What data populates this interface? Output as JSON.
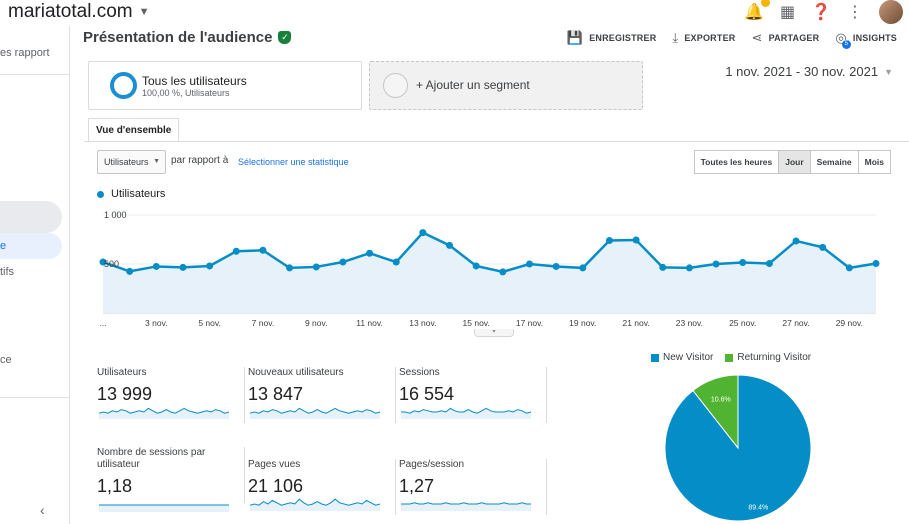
{
  "topbar": {
    "site": "mariatotal.com"
  },
  "sidebar": {
    "items": [
      "es rapport",
      "e",
      "tifs",
      "ce"
    ]
  },
  "header": {
    "title": "Présentation de l'audience",
    "actions": [
      "ENREGISTRER",
      "EXPORTER",
      "PARTAGER",
      "INSIGHTS"
    ],
    "insights_badge": "5"
  },
  "segments": {
    "primary": {
      "name": "Tous les utilisateurs",
      "detail": "100,00 %, Utilisateurs"
    },
    "add": "+ Ajouter un segment"
  },
  "date_range": "1 nov. 2021 - 30 nov. 2021",
  "tabs": [
    "Vue d'ensemble"
  ],
  "controls": {
    "metric": "Utilisateurs",
    "compare_label": "par rapport à",
    "select_stat": "Sélectionner une statistique",
    "granularity": [
      "Toutes les heures",
      "Jour",
      "Semaine",
      "Mois"
    ],
    "active_granularity": "Jour"
  },
  "chart_data": [
    {
      "type": "area",
      "series": [
        {
          "name": "Utilisateurs",
          "values": [
            520,
            425,
            475,
            465,
            480,
            630,
            640,
            460,
            470,
            520,
            610,
            520,
            820,
            690,
            480,
            420,
            500,
            475,
            460,
            740,
            745,
            465,
            460,
            500,
            515,
            505,
            735,
            670,
            460,
            505
          ]
        }
      ],
      "x": [
        "1 nov.",
        "2 nov.",
        "3 nov.",
        "4 nov.",
        "5 nov.",
        "6 nov.",
        "7 nov.",
        "8 nov.",
        "9 nov.",
        "10 nov.",
        "11 nov.",
        "12 nov.",
        "13 nov.",
        "14 nov.",
        "15 nov.",
        "16 nov.",
        "17 nov.",
        "18 nov.",
        "19 nov.",
        "20 nov.",
        "21 nov.",
        "22 nov.",
        "23 nov.",
        "24 nov.",
        "25 nov.",
        "26 nov.",
        "27 nov.",
        "28 nov.",
        "29 nov.",
        "30 nov."
      ],
      "x_tick_labels": [
        "...",
        "3 nov.",
        "5 nov.",
        "7 nov.",
        "9 nov.",
        "11 nov.",
        "13 nov.",
        "15 nov.",
        "17 nov.",
        "19 nov.",
        "21 nov.",
        "23 nov.",
        "25 nov.",
        "27 nov.",
        "29 nov."
      ],
      "y_tick_labels": [
        "1 000",
        "500"
      ],
      "ylim": [
        0,
        1000
      ],
      "legend": "top-left",
      "color": "#058dc7"
    },
    {
      "type": "pie",
      "categories": [
        "New Visitor",
        "Returning Visitor"
      ],
      "values": [
        89.4,
        10.6
      ],
      "labels": [
        "89.4%",
        "10.6%"
      ],
      "colors": [
        "#058dc7",
        "#50b432"
      ],
      "legend": "top"
    }
  ],
  "metrics": [
    {
      "name": "Utilisateurs",
      "value": "13 999",
      "spark": [
        4,
        5,
        4,
        6,
        5,
        7,
        6,
        4,
        5,
        6,
        5,
        8,
        6,
        4,
        5,
        7,
        5,
        4,
        6,
        8,
        6,
        5,
        4,
        5,
        6,
        5,
        7,
        6,
        4,
        5
      ]
    },
    {
      "name": "Nouveaux utilisateurs",
      "value": "13 847",
      "spark": [
        4,
        5,
        4,
        6,
        5,
        7,
        6,
        4,
        5,
        6,
        5,
        8,
        6,
        4,
        5,
        7,
        5,
        4,
        6,
        8,
        6,
        5,
        4,
        5,
        6,
        5,
        7,
        6,
        4,
        5
      ]
    },
    {
      "name": "Sessions",
      "value": "16 554",
      "spark": [
        5,
        5,
        4,
        6,
        5,
        7,
        6,
        5,
        5,
        6,
        5,
        8,
        6,
        5,
        5,
        7,
        5,
        4,
        6,
        8,
        6,
        5,
        5,
        5,
        6,
        5,
        7,
        6,
        4,
        5
      ]
    },
    {
      "name": "Nombre de sessions par utilisateur",
      "value": "1,18",
      "spark": [
        5,
        5,
        5,
        5,
        5,
        5,
        5,
        5,
        5,
        5,
        5,
        5,
        5,
        5,
        5,
        5,
        5,
        5,
        5,
        5,
        5,
        5,
        5,
        5,
        5,
        5,
        5,
        5,
        5,
        5
      ]
    },
    {
      "name": "Pages vues",
      "value": "21 106",
      "spark": [
        4,
        5,
        4,
        7,
        5,
        8,
        6,
        4,
        5,
        6,
        5,
        9,
        6,
        4,
        5,
        7,
        5,
        4,
        6,
        9,
        6,
        5,
        4,
        5,
        6,
        5,
        8,
        6,
        4,
        5
      ]
    },
    {
      "name": "Pages/session",
      "value": "1,27",
      "spark": [
        5,
        5,
        5,
        6,
        5,
        5,
        6,
        5,
        5,
        5,
        6,
        5,
        5,
        5,
        6,
        5,
        5,
        5,
        6,
        5,
        5,
        5,
        5,
        6,
        5,
        5,
        5,
        6,
        5,
        5
      ]
    }
  ]
}
